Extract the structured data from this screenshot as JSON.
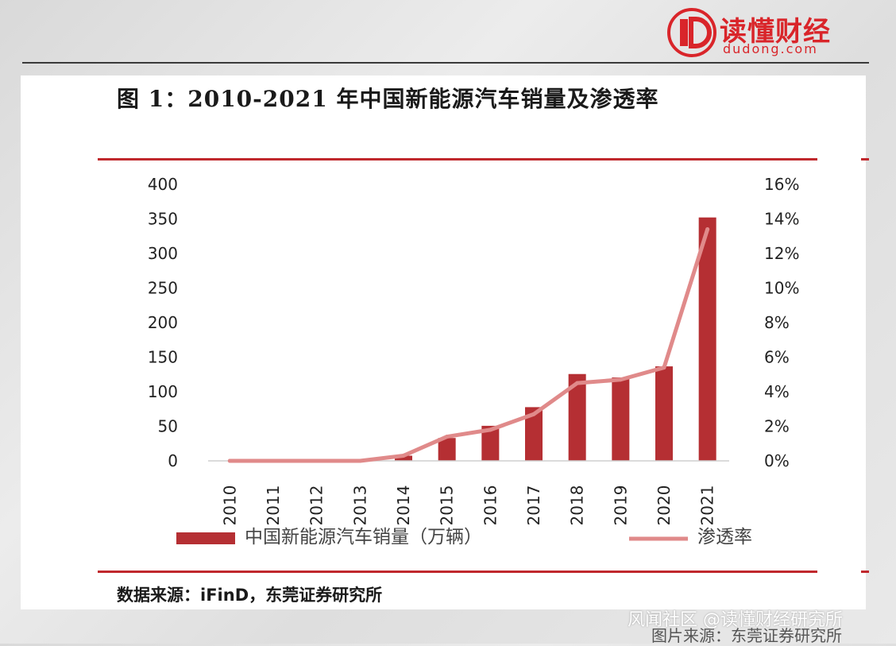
{
  "header": {
    "logo_name": "读懂财经",
    "logo_domain": "dudong.com"
  },
  "figure": {
    "title": "图 1：2010-2021 年中国新能源汽车销量及渗透率",
    "source": "数据来源：iFinD，东莞证券研究所"
  },
  "footer": {
    "watermark": "风闻社区 @读懂财经研究所",
    "caption": "图片来源：东莞证券研究所"
  },
  "colors": {
    "bar": "#b52f33",
    "line": "#e08a8a",
    "rule": "#c0282d",
    "brand": "#d9252a"
  },
  "chart_data": {
    "type": "bar",
    "categories": [
      "2010",
      "2011",
      "2012",
      "2013",
      "2014",
      "2015",
      "2016",
      "2017",
      "2018",
      "2019",
      "2020",
      "2021"
    ],
    "series": [
      {
        "name": "中国新能源汽车销量（万辆）",
        "type": "bar",
        "axis": "left",
        "values": [
          0.1,
          0.8,
          1.3,
          1.8,
          7.5,
          33.1,
          50.7,
          77.7,
          125.6,
          120.6,
          136.7,
          352.1
        ]
      },
      {
        "name": "渗透率",
        "type": "line",
        "axis": "right",
        "values": [
          0.0,
          0.0,
          0.0,
          0.0,
          0.3,
          1.4,
          1.8,
          2.7,
          4.5,
          4.7,
          5.4,
          13.4
        ]
      }
    ],
    "y_left": {
      "min": 0,
      "max": 400,
      "ticks": [
        "0",
        "50",
        "100",
        "150",
        "200",
        "250",
        "300",
        "350",
        "400"
      ]
    },
    "y_right": {
      "min": 0,
      "max": 16,
      "ticks": [
        "0%",
        "2%",
        "4%",
        "6%",
        "8%",
        "10%",
        "12%",
        "14%",
        "16%"
      ]
    },
    "grid": false,
    "legend_position": "bottom"
  }
}
